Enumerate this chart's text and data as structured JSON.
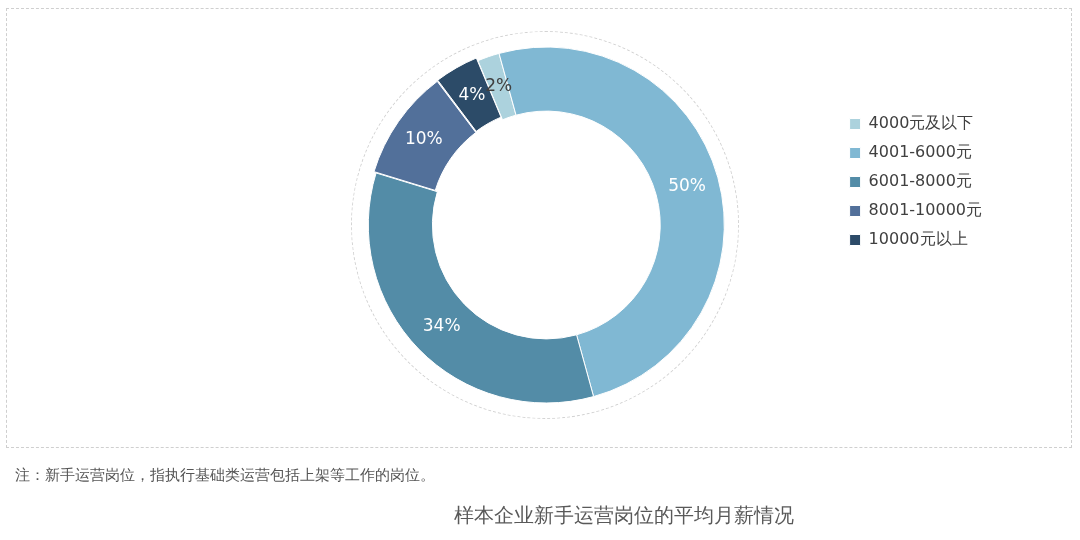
{
  "chart_data": {
    "type": "donut",
    "title": "样本企业新手运营岗位的平均月薪情况",
    "categories": [
      "4000元及以下",
      "4001-6000元",
      "6001-8000元",
      "8001-10000元",
      "10000元以上"
    ],
    "values": [
      2,
      50,
      34,
      10,
      4
    ],
    "colors": [
      "#acd2dd",
      "#80b8d3",
      "#538ca7",
      "#52709a",
      "#2c4b68"
    ],
    "value_labels": [
      "2%",
      "50%",
      "34%",
      "10%",
      "4%"
    ],
    "legend": "right",
    "annotations": [
      "注：新手运营岗位，指执行基础类运营包括上架等工作的岗位。"
    ]
  }
}
